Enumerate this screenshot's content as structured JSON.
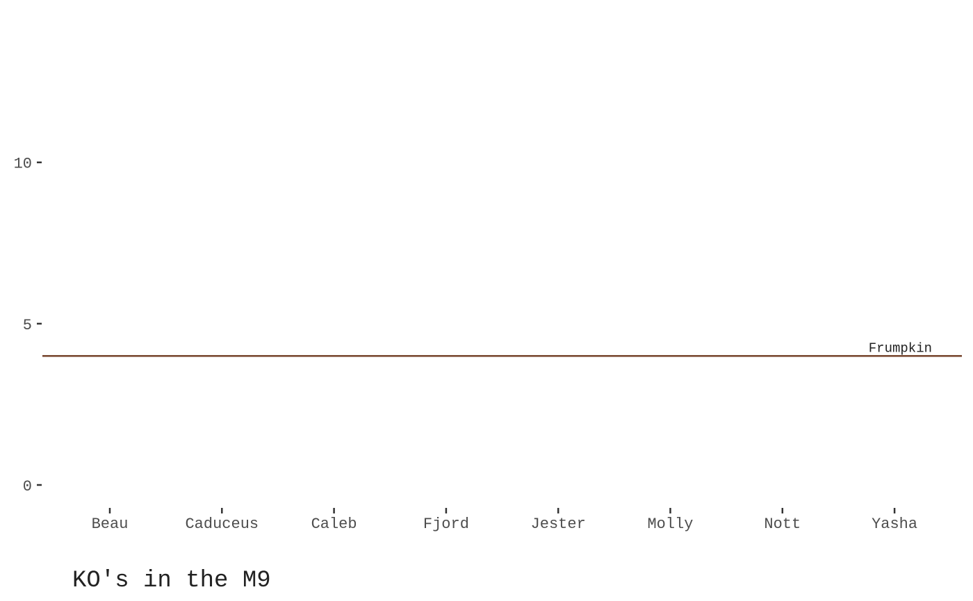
{
  "chart_data": {
    "type": "line",
    "caption": "KO's in the M9",
    "categories": [
      "Beau",
      "Caduceus",
      "Caleb",
      "Fjord",
      "Jester",
      "Molly",
      "Nott",
      "Yasha"
    ],
    "ylim": [
      0,
      14
    ],
    "yticks": [
      0,
      5,
      10
    ],
    "grid": false,
    "series": [],
    "reference_lines": [
      {
        "label": "Frumpkin",
        "value": 4,
        "color": "#7a4a33"
      }
    ]
  }
}
